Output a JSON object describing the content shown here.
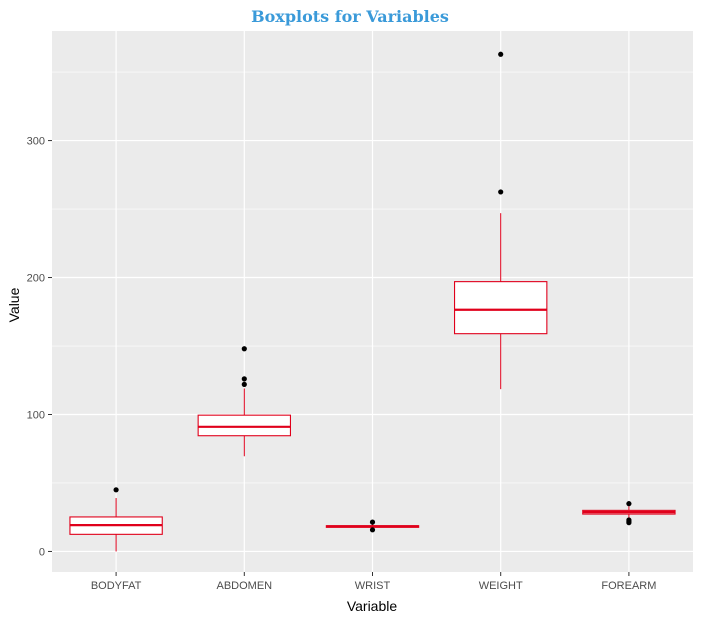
{
  "chart_data": {
    "type": "boxplot",
    "title": "Boxplots for Variables",
    "xlabel": "Variable",
    "ylabel": "Value",
    "ylim": [
      -15,
      380
    ],
    "yticks": [
      0,
      100,
      200,
      300
    ],
    "grid": true,
    "colors": {
      "panel": "#ebebeb",
      "grid": "#ffffff",
      "box": "#e0001b",
      "outlier": "#000000",
      "title": "#3a9ad9"
    },
    "categories": [
      "BODYFAT",
      "ABDOMEN",
      "WRIST",
      "WEIGHT",
      "FOREARM"
    ],
    "boxes": [
      {
        "category": "BODYFAT",
        "min": 0,
        "q1": 12.5,
        "median": 19.2,
        "q3": 25.2,
        "max": 39,
        "outliers": [
          45
        ]
      },
      {
        "category": "ABDOMEN",
        "min": 69.5,
        "q1": 84.5,
        "median": 91,
        "q3": 99.5,
        "max": 119,
        "outliers": [
          122,
          126,
          148
        ]
      },
      {
        "category": "WRIST",
        "min": 16.2,
        "q1": 17.6,
        "median": 18.3,
        "q3": 18.8,
        "max": 20.5,
        "outliers": [
          15.8,
          21.4
        ]
      },
      {
        "category": "WEIGHT",
        "min": 118.5,
        "q1": 159,
        "median": 176.5,
        "q3": 197,
        "max": 247,
        "outliers": [
          262.5,
          363
        ]
      },
      {
        "category": "FOREARM",
        "min": 24.5,
        "q1": 27.3,
        "median": 28.7,
        "q3": 30,
        "max": 33,
        "outliers": [
          21,
          22,
          23,
          34.9
        ]
      }
    ]
  }
}
